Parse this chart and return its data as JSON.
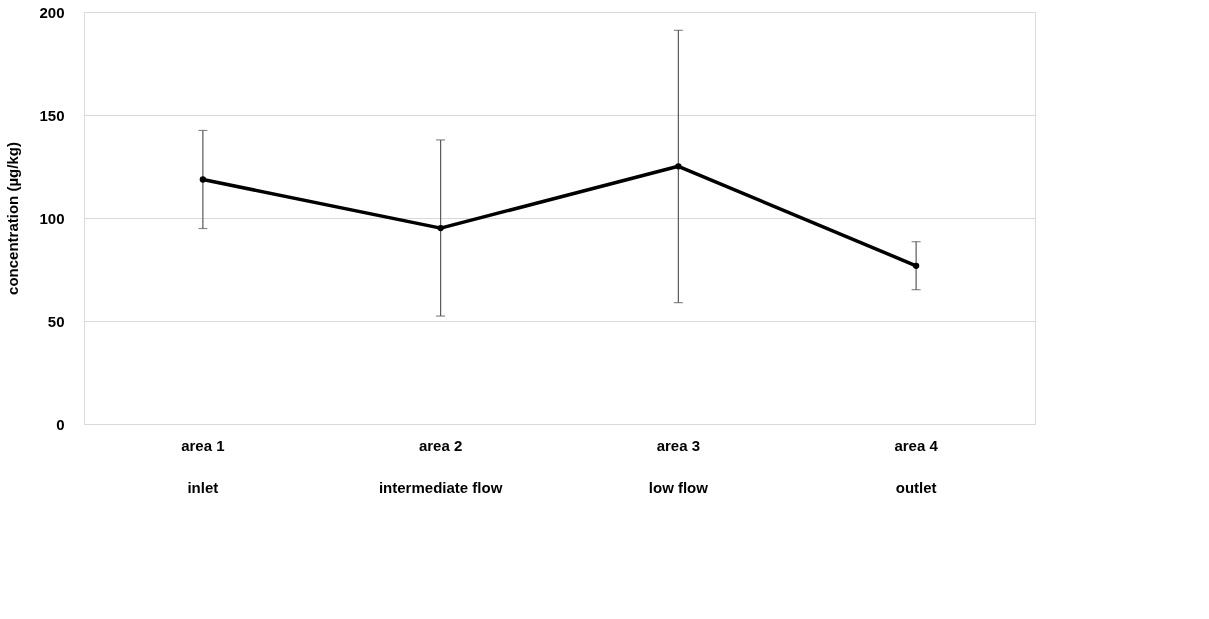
{
  "chart_data": {
    "type": "line",
    "ylabel": "concentration (µg/kg)",
    "categories": [
      "area 1\ninlet",
      "area 2\nintermediate flow",
      "area 3\nlow flow",
      "area 4\noutlet"
    ],
    "series": [
      {
        "color": "#000000",
        "values": [
          118.7,
          95.1,
          125.1,
          76.8
        ],
        "errors": [
          [
            94.9,
            142.5
          ],
          [
            52.4,
            137.9
          ],
          [
            58.9,
            191.1
          ],
          [
            65.2,
            88.5
          ]
        ]
      }
    ],
    "ylim": [
      0,
      200
    ],
    "yticks": [
      0,
      50,
      100,
      150,
      200
    ],
    "grid": "y",
    "marker": "circle",
    "line_style": "solid"
  }
}
